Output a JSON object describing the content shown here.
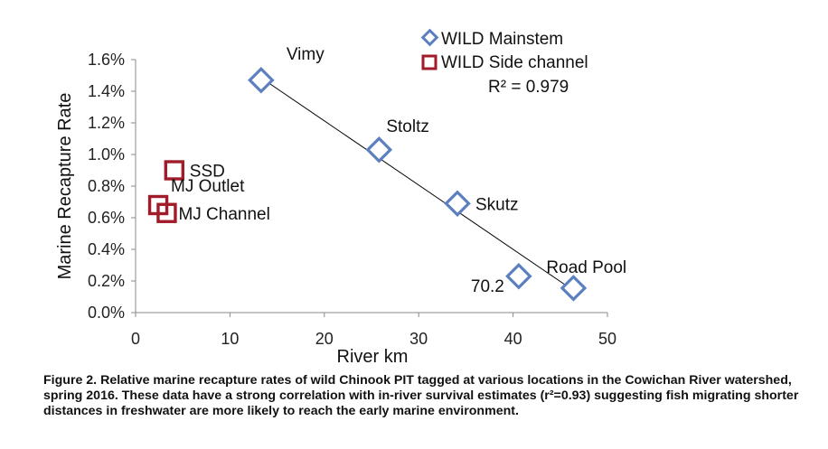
{
  "chart_data": {
    "type": "scatter",
    "xlabel": "River km",
    "ylabel": "Marine Recapture Rate",
    "xlim": [
      0,
      50
    ],
    "ylim": [
      0,
      1.6
    ],
    "xticks": [
      0,
      10,
      20,
      30,
      40,
      50
    ],
    "yticks": [
      0.0,
      0.2,
      0.4,
      0.6,
      0.8,
      1.0,
      1.2,
      1.4,
      1.6
    ],
    "yticklabels": [
      "0.0%",
      "0.2%",
      "0.4%",
      "0.6%",
      "0.8%",
      "1.0%",
      "1.2%",
      "1.4%",
      "1.6%"
    ],
    "legend_position": "top-right",
    "series": [
      {
        "name": "WILD Mainstem",
        "marker": "diamond",
        "color": "#5b7fbf",
        "points": [
          {
            "x": 13.3,
            "y": 1.47,
            "label": "Vimy"
          },
          {
            "x": 25.8,
            "y": 1.03,
            "label": "Stoltz"
          },
          {
            "x": 34.1,
            "y": 0.69,
            "label": "Skutz"
          },
          {
            "x": 40.6,
            "y": 0.23,
            "label": "70.2"
          },
          {
            "x": 46.4,
            "y": 0.155,
            "label": "Road Pool"
          }
        ]
      },
      {
        "name": "WILD Side channel",
        "marker": "square",
        "color": "#a01c2a",
        "points": [
          {
            "x": 4.1,
            "y": 0.9,
            "label": "SSD"
          },
          {
            "x": 2.4,
            "y": 0.68,
            "label": "MJ Outlet"
          },
          {
            "x": 3.3,
            "y": 0.63,
            "label": "MJ Channel"
          }
        ]
      }
    ],
    "trendline": {
      "x1": 13.3,
      "y1": 1.485,
      "x2": 46.4,
      "y2": 0.14
    },
    "r2_label": "R² = 0.979"
  },
  "caption": "Figure 2.  Relative marine recapture rates of wild Chinook PIT tagged at various locations in the Cowichan River watershed, spring 2016.  These data have a strong correlation with in-river survival estimates (r²=0.93) suggesting fish migrating shorter distances in freshwater are more likely to reach the early marine environment."
}
